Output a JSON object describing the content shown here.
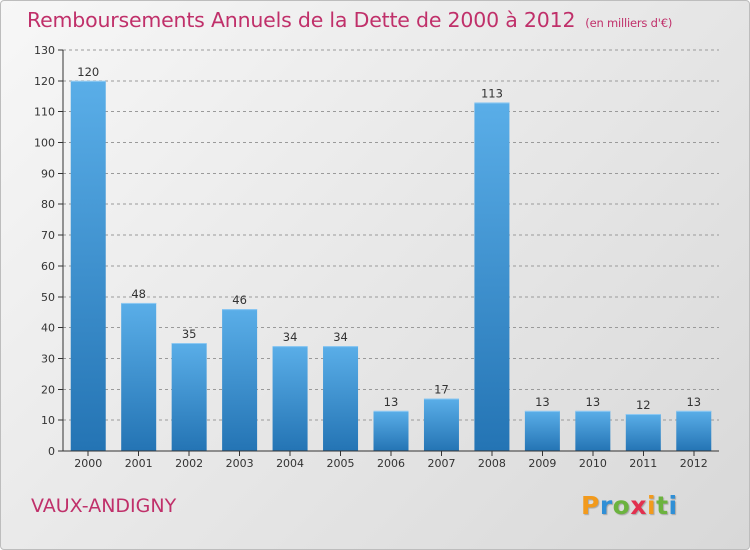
{
  "title": "Remboursements Annuels de la Dette de 2000 à 2012",
  "unit": "(en milliers d'€)",
  "commune": "VAUX-ANDIGNY",
  "brand": {
    "letters": [
      "P",
      "r",
      "o",
      "x",
      "i",
      "t",
      "i"
    ],
    "colors": [
      "#f29a1c",
      "#2f8fd6",
      "#6cb33f",
      "#e2304e",
      "#f29a1c",
      "#6cb33f",
      "#2f8fd6"
    ]
  },
  "colors": {
    "bar_top": "#5aaee8",
    "bar_bottom": "#2474b4",
    "title": "#c0306a",
    "axis": "#333333",
    "grid": "#9a9a9a"
  },
  "chart_data": {
    "type": "bar",
    "categories": [
      "2000",
      "2001",
      "2002",
      "2003",
      "2004",
      "2005",
      "2006",
      "2007",
      "2008",
      "2009",
      "2010",
      "2011",
      "2012"
    ],
    "values": [
      120,
      48,
      35,
      46,
      34,
      34,
      13,
      17,
      113,
      13,
      13,
      12,
      13
    ],
    "ylim": [
      0,
      130
    ],
    "yticks": [
      0,
      10,
      20,
      30,
      40,
      50,
      60,
      70,
      80,
      90,
      100,
      110,
      120,
      130
    ],
    "grid": true,
    "data_labels": true
  }
}
